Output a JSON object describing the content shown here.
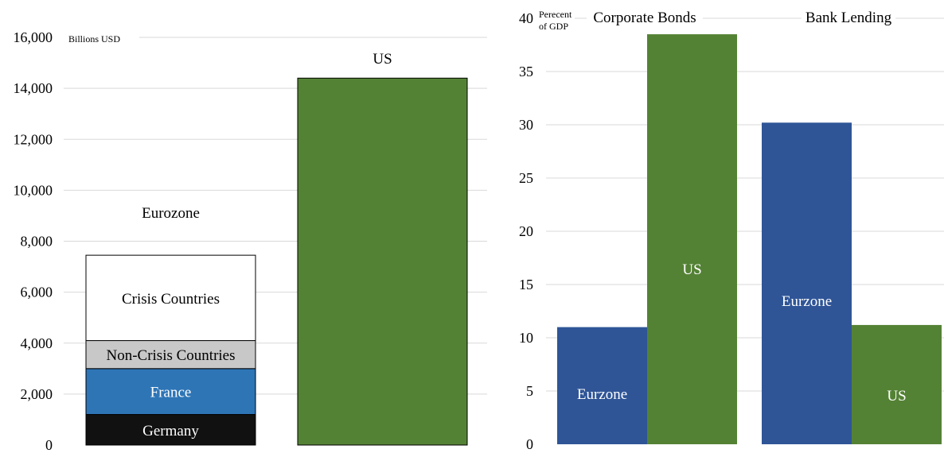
{
  "chart_data": [
    {
      "type": "bar",
      "stacked": true,
      "unit_label": "Billions USD",
      "ylim": [
        0,
        16000
      ],
      "yticks": [
        0,
        2000,
        4000,
        6000,
        8000,
        10000,
        12000,
        14000,
        16000
      ],
      "ytick_labels": [
        "0",
        "2,000",
        "4,000",
        "6,000",
        "8,000",
        "10,000",
        "12,000",
        "14,000",
        "16,000"
      ],
      "grid": true,
      "bars": [
        {
          "label": "Eurozone",
          "segments": [
            {
              "name": "Germany",
              "value": 1200,
              "color": "#111111",
              "text_color": "#ffffff"
            },
            {
              "name": "France",
              "value": 1800,
              "color": "#2e75b6",
              "text_color": "#ffffff"
            },
            {
              "name": "Non-Crisis Countries",
              "value": 1100,
              "color": "#c8c8c8",
              "text_color": "#000000"
            },
            {
              "name": "Crisis Countries",
              "value": 3350,
              "color": "#ffffff",
              "text_color": "#000000"
            }
          ]
        },
        {
          "label": "US",
          "segments": [
            {
              "name": "",
              "value": 14400,
              "color": "#548235",
              "text_color": "#000000"
            }
          ]
        }
      ]
    },
    {
      "type": "bar",
      "unit_label": [
        "Perecent",
        "of GDP"
      ],
      "ylim": [
        0,
        40
      ],
      "yticks": [
        0,
        5,
        10,
        15,
        20,
        25,
        30,
        35,
        40
      ],
      "ytick_labels": [
        "0",
        "5",
        "10",
        "15",
        "20",
        "25",
        "30",
        "35",
        "40"
      ],
      "grid": true,
      "groups": [
        {
          "title": "Corporate Bonds",
          "bars": [
            {
              "label": "Eurzone",
              "value": 11.0,
              "color": "#2f5597"
            },
            {
              "label": "US",
              "value": 38.5,
              "color": "#548235"
            }
          ]
        },
        {
          "title": "Bank Lending",
          "bars": [
            {
              "label": "Eurzone",
              "value": 30.2,
              "color": "#2f5597"
            },
            {
              "label": "US",
              "value": 11.2,
              "color": "#548235"
            }
          ]
        }
      ]
    }
  ]
}
